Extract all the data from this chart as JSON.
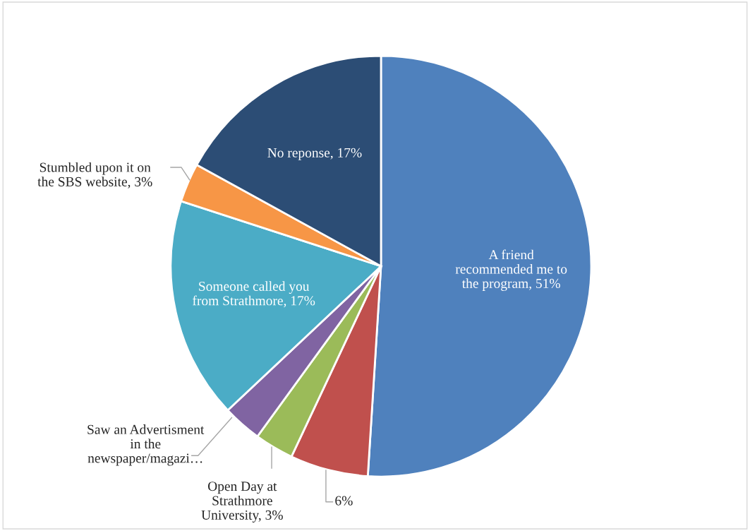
{
  "chart_data": {
    "type": "pie",
    "categories": [
      "A friend recommended me to the program",
      null,
      "Open Day at Strathmore University",
      "Saw an Advertisment in the newspaper/magazi…",
      "Someone called you from Strathmore",
      "Stumbled upon it on the SBS website",
      "No reponse"
    ],
    "values": [
      51,
      6,
      3,
      3,
      17,
      3,
      17
    ],
    "value_labels": [
      "51%",
      "6%",
      "3%",
      null,
      "17%",
      "3%",
      "17%"
    ],
    "colors": [
      "#4f81bd",
      "#c0504d",
      "#9bbb59",
      "#8064a2",
      "#4bacc6",
      "#f79646",
      "#2c4d75"
    ]
  }
}
